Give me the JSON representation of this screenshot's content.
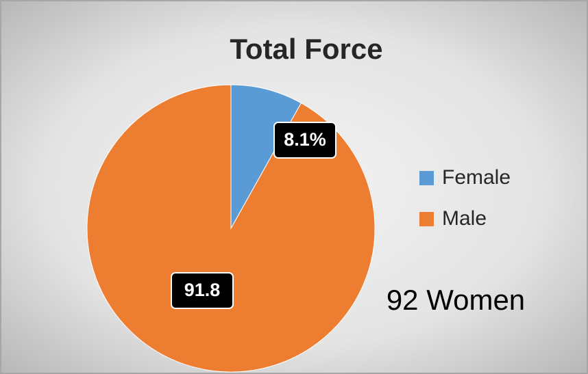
{
  "chart_data": {
    "type": "pie",
    "title": "Total Force",
    "categories": [
      "Female",
      "Male"
    ],
    "values": [
      8.1,
      91.8
    ],
    "value_labels": [
      "8.1%",
      "91.8"
    ],
    "colors": [
      "#5b9bd5",
      "#ed7d31"
    ],
    "legend": "right",
    "annotation": "92 Women"
  }
}
